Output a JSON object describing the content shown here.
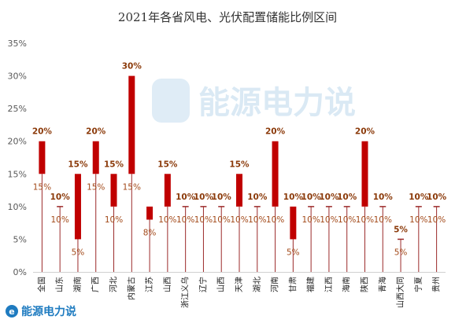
{
  "brand": {
    "name": "能源电力说"
  },
  "colors": {
    "bar": "#c00000",
    "whisker": "#9b2a2a",
    "axis": "#d0d0d0",
    "brand": "#1e7bc0",
    "label": "#8b3a0a"
  },
  "chart_data": {
    "type": "bar",
    "subtype": "range",
    "title": "2021年各省风电、光伏配置储能比例区间",
    "xlabel": "",
    "ylabel": "",
    "ylim": [
      0,
      35
    ],
    "yticks": [
      "0%",
      "5%",
      "10%",
      "15%",
      "20%",
      "25%",
      "30%",
      "35%"
    ],
    "grid": false,
    "categories": [
      "全国",
      "山东",
      "湖南",
      "广西",
      "河北",
      "内蒙古",
      "江苏",
      "山西",
      "浙江义乌",
      "辽宁",
      "山西",
      "天津",
      "湖北",
      "河南",
      "甘肃",
      "福建",
      "江西",
      "海南",
      "陕西",
      "青海",
      "山西大同",
      "宁夏",
      "贵州"
    ],
    "low": [
      15,
      10,
      5,
      15,
      10,
      15,
      8,
      10,
      10,
      10,
      10,
      10,
      10,
      10,
      5,
      10,
      10,
      10,
      10,
      10,
      5,
      10,
      10
    ],
    "high": [
      20,
      10,
      15,
      20,
      15,
      30,
      10,
      15,
      10,
      10,
      10,
      15,
      10,
      20,
      10,
      10,
      10,
      10,
      20,
      10,
      5,
      10,
      10
    ],
    "high_labels": [
      "20%",
      "10%",
      "15%",
      "20%",
      "15%",
      "30%",
      "",
      "15%",
      "10%",
      "10%",
      "10%",
      "15%",
      "10%",
      "20%",
      "10%",
      "10%",
      "10%",
      "10%",
      "20%",
      "10%",
      "5%",
      "10%",
      "10%"
    ],
    "low_labels": [
      "15%",
      "10%",
      "5%",
      "15%",
      "10%",
      "15%",
      "8%",
      "10%",
      "10%",
      "10%",
      "10%",
      "10%",
      "10%",
      "10%",
      "5%",
      "10%",
      "10%",
      "10%",
      "10%",
      "10%",
      "5%",
      "10%",
      "10%"
    ]
  }
}
